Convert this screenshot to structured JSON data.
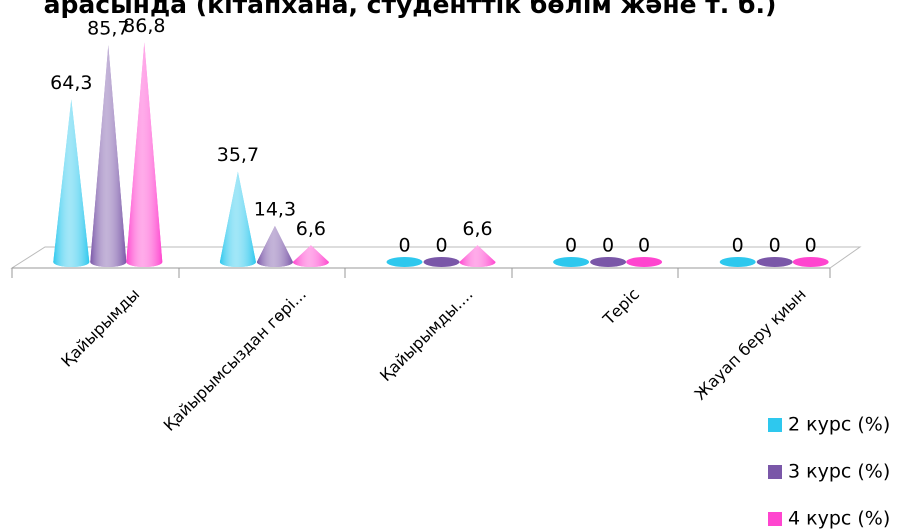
{
  "chart_data": {
    "type": "cone",
    "title": "арасында (кітапхана, студенттік бөлім және т. б.)",
    "categories": [
      "Қайырымды",
      "Қайырымсыздан гөрі...",
      "Қайырымды....",
      "Теріс",
      "Жауап беру қиын"
    ],
    "ylim": [
      0,
      100
    ],
    "series": [
      {
        "name": "2 курс (%)",
        "color": "#2ec8ee",
        "values": [
          64.3,
          35.7,
          0,
          0,
          0
        ],
        "value_labels": [
          "64,3",
          "35,7",
          "0",
          "0",
          "0"
        ]
      },
      {
        "name": "3 курс (%)",
        "color": "#7a57a8",
        "values": [
          85.7,
          14.3,
          0,
          0,
          0
        ],
        "value_labels": [
          "85,7",
          "14,3",
          "0",
          "0",
          "0"
        ]
      },
      {
        "name": "4 курс (%)",
        "color": "#ff45cf",
        "values": [
          86.8,
          6.6,
          6.6,
          0,
          0
        ],
        "value_labels": [
          "86,8",
          "6,6",
          "6,6",
          "0",
          "0"
        ]
      }
    ],
    "legend": "right"
  }
}
